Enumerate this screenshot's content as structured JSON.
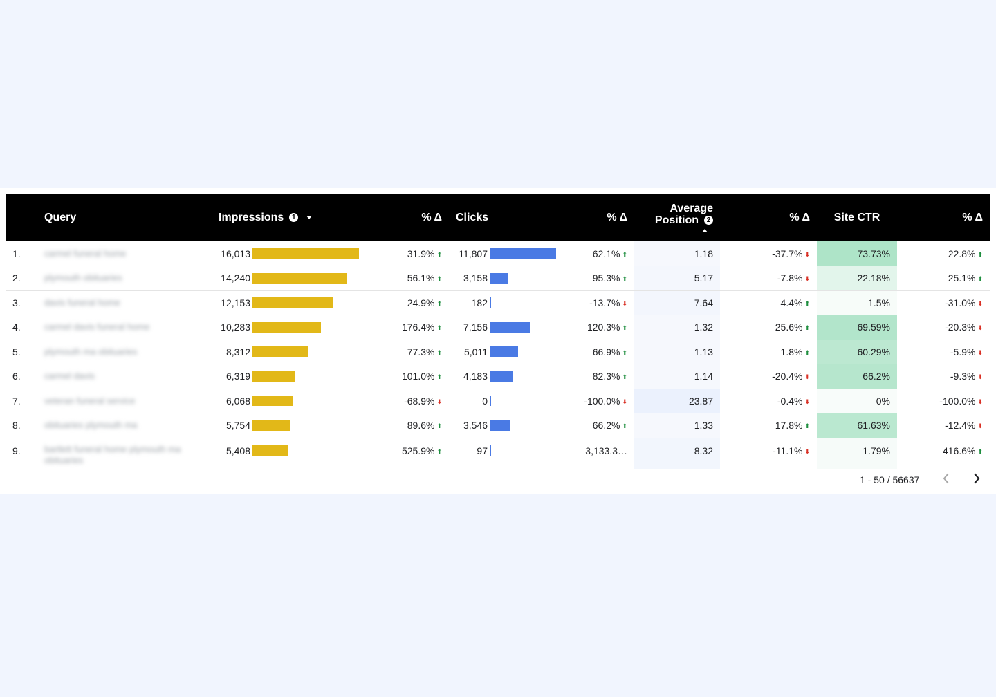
{
  "colors": {
    "page_bg": "#f1f5fe",
    "header_bg": "#000000",
    "impressions_bar": "#e2b818",
    "clicks_bar": "#4a7ae4",
    "up_arrow": "#1e8e3e",
    "down_arrow": "#d93025"
  },
  "header": {
    "query": "Query",
    "impressions": "Impressions",
    "impressions_info": "1",
    "pct_delta": "% Δ",
    "clicks": "Clicks",
    "avg_position_line1": "Average",
    "avg_position_line2": "Position",
    "avg_position_info": "2",
    "site_ctr": "Site CTR"
  },
  "rows": [
    {
      "idx": "1.",
      "query": "carmel funeral home",
      "impressions": "16,013",
      "imp_value": 16013,
      "imp_delta": "31.9%",
      "imp_dir": "up",
      "clicks": "11,807",
      "clk_value": 11807,
      "clk_delta": "62.1%",
      "clk_dir": "up",
      "avg_pos": "1.18",
      "pos_delta": "-37.7%",
      "pos_dir": "down",
      "ctr": "73.73%",
      "ctr_value": 73.73,
      "ctr_delta": "22.8%",
      "ctr_dir": "up"
    },
    {
      "idx": "2.",
      "query": "plymouth obituaries",
      "impressions": "14,240",
      "imp_value": 14240,
      "imp_delta": "56.1%",
      "imp_dir": "up",
      "clicks": "3,158",
      "clk_value": 3158,
      "clk_delta": "95.3%",
      "clk_dir": "up",
      "avg_pos": "5.17",
      "pos_delta": "-7.8%",
      "pos_dir": "down",
      "ctr": "22.18%",
      "ctr_value": 22.18,
      "ctr_delta": "25.1%",
      "ctr_dir": "up"
    },
    {
      "idx": "3.",
      "query": "davis funeral home",
      "impressions": "12,153",
      "imp_value": 12153,
      "imp_delta": "24.9%",
      "imp_dir": "up",
      "clicks": "182",
      "clk_value": 182,
      "clk_delta": "-13.7%",
      "clk_dir": "down",
      "avg_pos": "7.64",
      "pos_delta": "4.4%",
      "pos_dir": "up",
      "ctr": "1.5%",
      "ctr_value": 1.5,
      "ctr_delta": "-31.0%",
      "ctr_dir": "down"
    },
    {
      "idx": "4.",
      "query": "carmel davis funeral home",
      "impressions": "10,283",
      "imp_value": 10283,
      "imp_delta": "176.4%",
      "imp_dir": "up",
      "clicks": "7,156",
      "clk_value": 7156,
      "clk_delta": "120.3%",
      "clk_dir": "up",
      "avg_pos": "1.32",
      "pos_delta": "25.6%",
      "pos_dir": "up",
      "ctr": "69.59%",
      "ctr_value": 69.59,
      "ctr_delta": "-20.3%",
      "ctr_dir": "down"
    },
    {
      "idx": "5.",
      "query": "plymouth ma obituaries",
      "impressions": "8,312",
      "imp_value": 8312,
      "imp_delta": "77.3%",
      "imp_dir": "up",
      "clicks": "5,011",
      "clk_value": 5011,
      "clk_delta": "66.9%",
      "clk_dir": "up",
      "avg_pos": "1.13",
      "pos_delta": "1.8%",
      "pos_dir": "up",
      "ctr": "60.29%",
      "ctr_value": 60.29,
      "ctr_delta": "-5.9%",
      "ctr_dir": "down"
    },
    {
      "idx": "6.",
      "query": "carmel davis",
      "impressions": "6,319",
      "imp_value": 6319,
      "imp_delta": "101.0%",
      "imp_dir": "up",
      "clicks": "4,183",
      "clk_value": 4183,
      "clk_delta": "82.3%",
      "clk_dir": "up",
      "avg_pos": "1.14",
      "pos_delta": "-20.4%",
      "pos_dir": "down",
      "ctr": "66.2%",
      "ctr_value": 66.2,
      "ctr_delta": "-9.3%",
      "ctr_dir": "down"
    },
    {
      "idx": "7.",
      "query": "veteran funeral service",
      "impressions": "6,068",
      "imp_value": 6068,
      "imp_delta": "-68.9%",
      "imp_dir": "down",
      "clicks": "0",
      "clk_value": 0,
      "clk_delta": "-100.0%",
      "clk_dir": "down",
      "avg_pos": "23.87",
      "pos_delta": "-0.4%",
      "pos_dir": "down",
      "ctr": "0%",
      "ctr_value": 0,
      "ctr_delta": "-100.0%",
      "ctr_dir": "down"
    },
    {
      "idx": "8.",
      "query": "obituaries plymouth ma",
      "impressions": "5,754",
      "imp_value": 5754,
      "imp_delta": "89.6%",
      "imp_dir": "up",
      "clicks": "3,546",
      "clk_value": 3546,
      "clk_delta": "66.2%",
      "clk_dir": "up",
      "avg_pos": "1.33",
      "pos_delta": "17.8%",
      "pos_dir": "up",
      "ctr": "61.63%",
      "ctr_value": 61.63,
      "ctr_delta": "-12.4%",
      "ctr_dir": "down"
    },
    {
      "idx": "9.",
      "query": "bartlett funeral home plymouth ma obituaries",
      "impressions": "5,408",
      "imp_value": 5408,
      "imp_delta": "525.9%",
      "imp_dir": "up",
      "clicks": "97",
      "clk_value": 97,
      "clk_delta": "3,133.3…",
      "clk_dir": "",
      "avg_pos": "8.32",
      "pos_delta": "-11.1%",
      "pos_dir": "down",
      "ctr": "1.79%",
      "ctr_value": 1.79,
      "ctr_delta": "416.6%",
      "ctr_dir": "up"
    }
  ],
  "pager": {
    "range": "1 - 50 / 56637"
  }
}
